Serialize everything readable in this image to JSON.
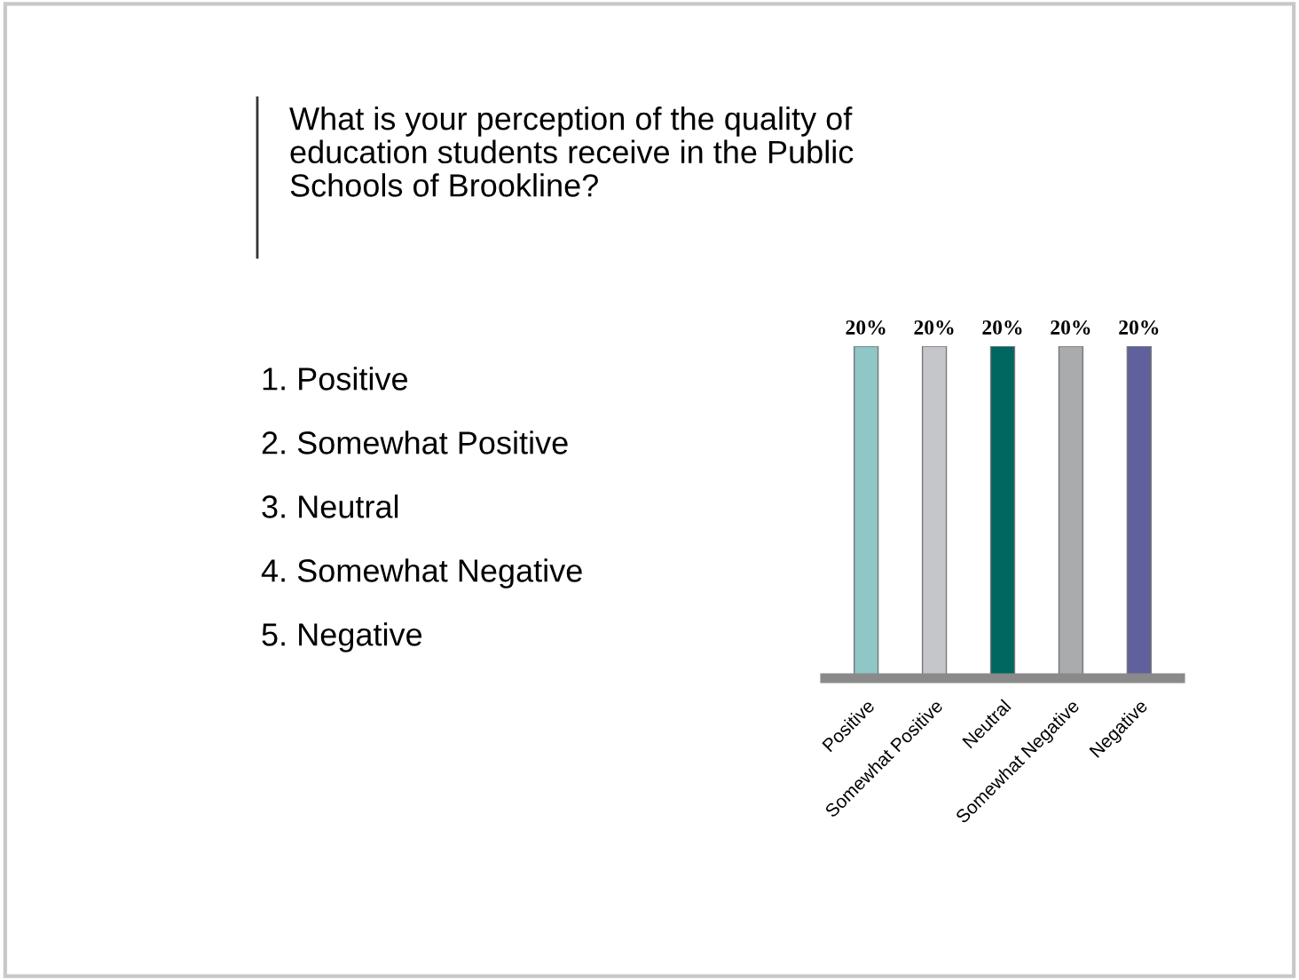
{
  "chart_data": {
    "type": "bar",
    "title": "What is your perception of the quality of\neducation students receive in the Public\nSchools of Brookline?",
    "categories": [
      "Positive",
      "Somewhat Positive",
      "Neutral",
      "Somewhat Negative",
      "Negative"
    ],
    "values": [
      20,
      20,
      20,
      20,
      20
    ],
    "colors": [
      "#8fc6c6",
      "#c4c6ca",
      "#006660",
      "#a9abad",
      "#60609c"
    ],
    "value_labels": [
      "20%",
      "20%",
      "20%",
      "20%",
      "20%"
    ],
    "annotations": [
      "1. Positive",
      "2. Somewhat Positive",
      "3. Neutral",
      "4. Somewhat Negative",
      "5. Negative"
    ],
    "grid": false,
    "legend": false
  }
}
